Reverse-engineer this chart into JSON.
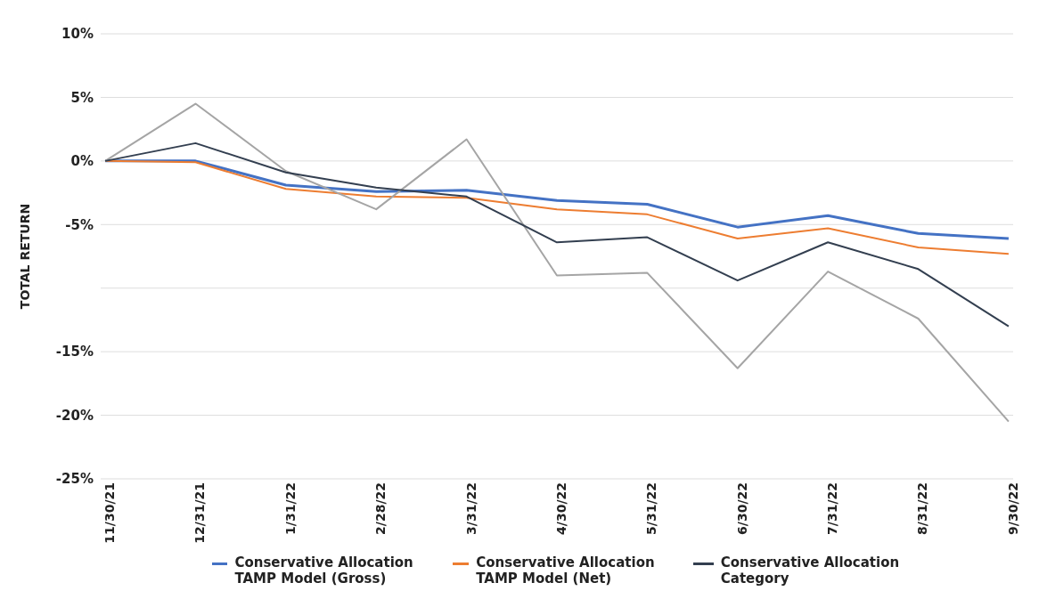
{
  "chart_data": {
    "type": "line",
    "ylabel": "TOTAL RETURN",
    "categories": [
      "11/30/21",
      "12/31/21",
      "1/31/22",
      "2/28/22",
      "3/31/22",
      "4/30/22",
      "5/31/22",
      "6/30/22",
      "7/31/22",
      "8/31/22",
      "9/30/22"
    ],
    "series": [
      {
        "name": "Conservative Allocation TAMP Model (Gross)",
        "color": "#4472c4",
        "values": [
          0,
          0,
          -1.9,
          -2.4,
          -2.3,
          -3.1,
          -3.4,
          -5.2,
          -4.3,
          -5.7,
          -6.1
        ]
      },
      {
        "name": "Conservative Allocation TAMP Model (Net)",
        "color": "#ed7d31",
        "values": [
          0,
          -0.1,
          -2.2,
          -2.8,
          -2.9,
          -3.8,
          -4.2,
          -6.1,
          -5.3,
          -6.8,
          -7.3
        ]
      },
      {
        "color": "#a5a5a5",
        "values": [
          0,
          4.5,
          -0.8,
          -3.8,
          1.7,
          -9.0,
          -8.8,
          -16.3,
          -8.7,
          -12.4,
          -20.5
        ]
      },
      {
        "name": "Conservative Allocation Category",
        "color": "#333f50",
        "values": [
          0,
          1.4,
          -0.9,
          -2.1,
          -2.8,
          -6.4,
          -6.0,
          -9.4,
          -6.4,
          -8.5,
          -13.0
        ]
      }
    ],
    "ylim": [
      -25,
      10
    ],
    "yticks": [
      {
        "value": 10,
        "label": "10%"
      },
      {
        "value": 5,
        "label": "5%"
      },
      {
        "value": 0,
        "label": "0%"
      },
      {
        "value": -5,
        "label": "-5%"
      },
      {
        "value": -10,
        "label": null
      },
      {
        "value": -15,
        "label": "-15%"
      },
      {
        "value": -20,
        "label": "-20%"
      },
      {
        "value": -25,
        "label": "-25%"
      }
    ],
    "grid": "y",
    "legend": "bottom",
    "marker": "none",
    "line_style": "solid"
  }
}
